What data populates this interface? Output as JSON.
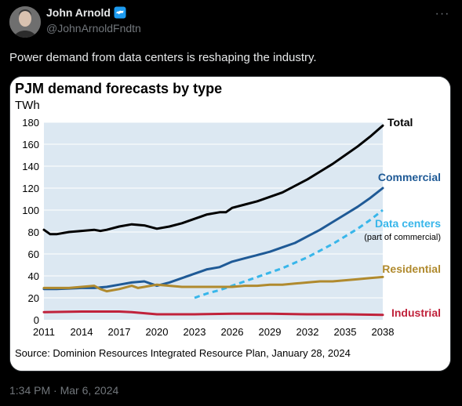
{
  "author": {
    "name": "John Arnold",
    "handle": "@JohnArnoldFndtn",
    "verified_color": "#1d9bf0"
  },
  "tweet": {
    "text": "Power demand from data centers is reshaping the industry.",
    "timestamp": "1:34 PM · Mar 6, 2024",
    "more_icon": "more-dots-icon"
  },
  "chart_data": {
    "type": "line",
    "title": "PJM demand forecasts by type",
    "ylabel": "TWh",
    "source": "Source: Dominion Resources Integrated Resource Plan, January 28, 2024",
    "ylim": [
      0,
      180
    ],
    "xlim": [
      2011,
      2038
    ],
    "yticks": [
      "0",
      "20",
      "40",
      "60",
      "80",
      "100",
      "120",
      "140",
      "160",
      "180"
    ],
    "xticks": [
      "2011",
      "2014",
      "2017",
      "2020",
      "2023",
      "2026",
      "2029",
      "2032",
      "2035",
      "2038"
    ],
    "grid": true,
    "series": [
      {
        "name": "Total",
        "color": "#000000",
        "dash": false,
        "x": [
          2011,
          2011.5,
          2012,
          2013,
          2014,
          2015,
          2015.5,
          2016,
          2017,
          2018,
          2019,
          2020,
          2021,
          2022,
          2023,
          2024,
          2025,
          2025.5,
          2026,
          2027,
          2028,
          2029,
          2030,
          2031,
          2032,
          2033,
          2034,
          2035,
          2036,
          2037,
          2038
        ],
        "y": [
          82,
          78,
          78,
          80,
          81,
          82,
          81,
          82,
          85,
          87,
          86,
          83,
          85,
          88,
          92,
          96,
          98,
          98,
          102,
          105,
          108,
          112,
          116,
          122,
          128,
          135,
          142,
          150,
          158,
          167,
          177
        ]
      },
      {
        "name": "Commercial",
        "color": "#1f5a96",
        "dash": false,
        "x": [
          2011,
          2012,
          2013,
          2014,
          2015,
          2016,
          2017,
          2018,
          2019,
          2019.5,
          2020,
          2021,
          2022,
          2023,
          2024,
          2025,
          2026,
          2027,
          2028,
          2029,
          2030,
          2031,
          2032,
          2033,
          2034,
          2035,
          2036,
          2037,
          2038
        ],
        "y": [
          28,
          28,
          28.5,
          29,
          29,
          30,
          32,
          34,
          35,
          33,
          31,
          34,
          38,
          42,
          46,
          48,
          53,
          56,
          59,
          62,
          66,
          70,
          76,
          82,
          89,
          96,
          103,
          111,
          120
        ]
      },
      {
        "name": "Data centers",
        "sublabel": "(part of commercial)",
        "color": "#38b6ea",
        "dash": true,
        "x": [
          2023,
          2024,
          2025,
          2026,
          2027,
          2028,
          2029,
          2030,
          2031,
          2032,
          2033,
          2034,
          2035,
          2036,
          2037,
          2038
        ],
        "y": [
          20,
          24,
          27,
          31,
          35,
          39,
          43,
          47,
          52,
          57,
          63,
          69,
          76,
          83,
          91,
          100
        ]
      },
      {
        "name": "Residential",
        "color": "#b08a2e",
        "dash": false,
        "x": [
          2011,
          2012,
          2013,
          2014,
          2015,
          2015.5,
          2016,
          2017,
          2018,
          2018.5,
          2019,
          2020,
          2021,
          2022,
          2023,
          2024,
          2025,
          2026,
          2027,
          2028,
          2029,
          2030,
          2031,
          2032,
          2033,
          2034,
          2035,
          2036,
          2037,
          2038
        ],
        "y": [
          29,
          29,
          29,
          30,
          31,
          28,
          26,
          28,
          31,
          29,
          30,
          32,
          31,
          30,
          30,
          30,
          30,
          30,
          31,
          31,
          32,
          32,
          33,
          34,
          35,
          35,
          36,
          37,
          38,
          39
        ]
      },
      {
        "name": "Industrial",
        "color": "#c0223b",
        "dash": false,
        "x": [
          2011,
          2014,
          2017,
          2018,
          2019,
          2020,
          2023,
          2026,
          2029,
          2032,
          2035,
          2038
        ],
        "y": [
          7,
          7.5,
          7.5,
          7,
          6,
          5,
          5,
          5.5,
          5.5,
          5,
          5,
          4.5
        ]
      }
    ]
  }
}
